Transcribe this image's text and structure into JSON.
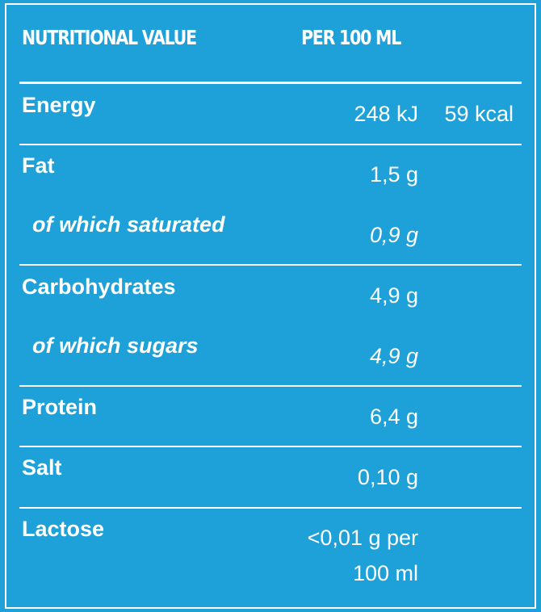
{
  "header": {
    "nutritional_value": "NUTRITIONAL VALUE",
    "per_100ml": "PER 100 ML"
  },
  "rows": [
    {
      "label": "Energy",
      "value": "248 kJ",
      "value2": "59 kcal"
    },
    {
      "label": "Fat",
      "value": "1,5 g"
    },
    {
      "label": "of which saturated",
      "value": "0,9 g"
    },
    {
      "label": "Carbohydrates",
      "value": "4,9 g"
    },
    {
      "label": "of which sugars",
      "value": "4,9 g"
    },
    {
      "label": "Protein",
      "value": "6,4 g"
    },
    {
      "label": "Salt",
      "value": "0,10 g"
    },
    {
      "label": "Lactose",
      "value_line1": "<0,01 g per",
      "value_line2": "100 ml"
    }
  ],
  "colors": {
    "background": "#1ea0d8",
    "text": "#ffffff"
  }
}
